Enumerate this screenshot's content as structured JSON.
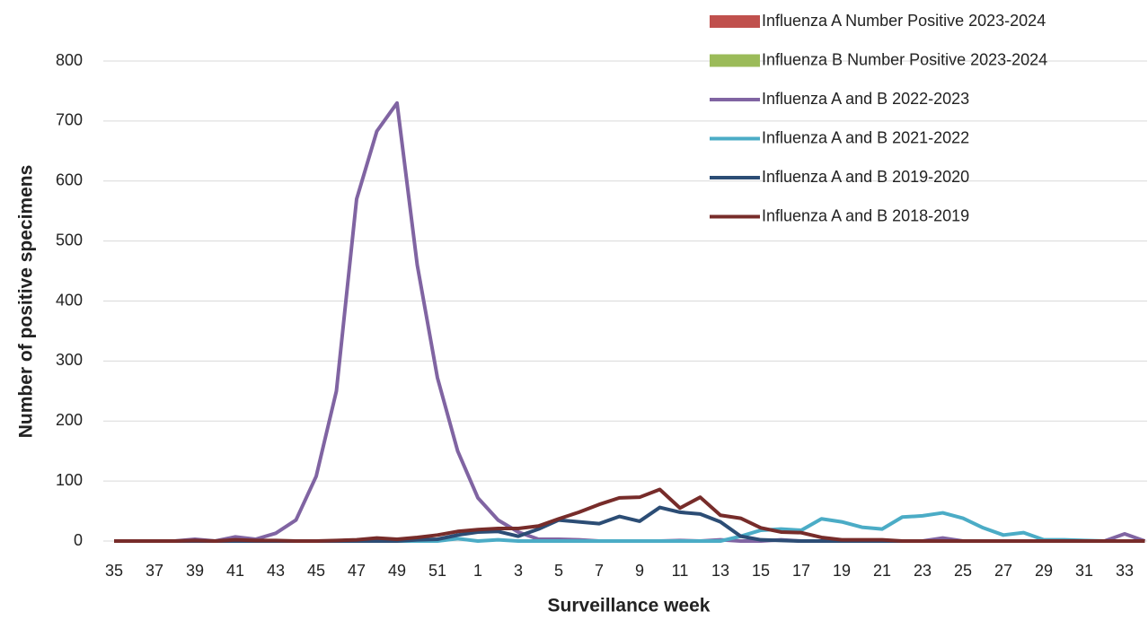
{
  "chart_data": {
    "type": "line",
    "x_label": "Surveillance week",
    "y_label": "Number of positive specimens",
    "categories": [
      35,
      null,
      37,
      null,
      39,
      null,
      41,
      null,
      43,
      null,
      45,
      null,
      47,
      null,
      49,
      null,
      51,
      null,
      1,
      null,
      3,
      null,
      5,
      null,
      7,
      null,
      9,
      null,
      11,
      null,
      13,
      null,
      15,
      null,
      17,
      null,
      19,
      null,
      21,
      null,
      23,
      null,
      25,
      null,
      27,
      null,
      29,
      null,
      31,
      null,
      33,
      null
    ],
    "ylim": [
      0,
      800
    ],
    "yticks": [
      0,
      100,
      200,
      300,
      400,
      500,
      600,
      700,
      800
    ],
    "grid": true,
    "legend": "top-right",
    "series": [
      {
        "name": "Influenza A Number Positive 2023-2024",
        "type": "bar",
        "color": "#c0504d",
        "values": [
          null,
          null,
          null,
          null,
          null,
          null,
          null,
          null,
          null,
          null,
          null,
          null,
          null,
          null,
          null,
          null,
          null,
          null,
          null,
          null,
          null,
          null,
          null,
          null,
          null,
          null,
          null,
          null,
          null,
          null,
          null,
          null,
          null,
          null,
          null,
          null,
          null,
          null,
          null,
          null,
          null,
          null,
          null,
          null,
          null,
          null,
          null,
          null,
          null,
          null,
          null,
          null
        ]
      },
      {
        "name": "Influenza B Number Positive 2023-2024",
        "type": "bar",
        "color": "#9bbb59",
        "values": [
          null,
          null,
          null,
          null,
          null,
          null,
          null,
          null,
          null,
          null,
          null,
          null,
          null,
          null,
          null,
          null,
          null,
          null,
          null,
          null,
          null,
          null,
          null,
          null,
          null,
          null,
          null,
          null,
          null,
          null,
          null,
          null,
          null,
          null,
          null,
          null,
          null,
          null,
          null,
          null,
          null,
          null,
          null,
          null,
          null,
          null,
          null,
          null,
          null,
          null,
          null,
          null
        ]
      },
      {
        "name": "Influenza A and B 2022-2023",
        "type": "line",
        "color": "#8064a2",
        "values": [
          0,
          0,
          0,
          0,
          3,
          0,
          7,
          3,
          13,
          35,
          108,
          250,
          570,
          683,
          730,
          460,
          272,
          150,
          72,
          35,
          15,
          3,
          3,
          2,
          0,
          0,
          0,
          0,
          1,
          0,
          2,
          0,
          0,
          2,
          0,
          0,
          0,
          0,
          0,
          0,
          0,
          5,
          0,
          0,
          0,
          0,
          0,
          0,
          0,
          0,
          12,
          0
        ]
      },
      {
        "name": "Influenza A and B 2021-2022",
        "type": "line",
        "color": "#4bacc6",
        "values": [
          0,
          0,
          0,
          0,
          0,
          0,
          0,
          0,
          0,
          0,
          0,
          0,
          0,
          0,
          0,
          0,
          0,
          4,
          0,
          2,
          0,
          0,
          0,
          0,
          0,
          0,
          0,
          0,
          0,
          0,
          0,
          8,
          18,
          20,
          18,
          37,
          32,
          23,
          20,
          40,
          42,
          47,
          38,
          22,
          10,
          14,
          2,
          2,
          1,
          0,
          0,
          0
        ]
      },
      {
        "name": "Influenza A and B 2019-2020",
        "type": "line",
        "color": "#2c4d75",
        "values": [
          0,
          0,
          0,
          0,
          0,
          0,
          0,
          0,
          0,
          0,
          0,
          0,
          0,
          0,
          0,
          2,
          3,
          10,
          15,
          16,
          8,
          20,
          35,
          32,
          29,
          41,
          33,
          56,
          48,
          45,
          32,
          8,
          2,
          1,
          0,
          0,
          0,
          0,
          0,
          0,
          0,
          0,
          0,
          0,
          0,
          0,
          0,
          0,
          0,
          0,
          0,
          0
        ]
      },
      {
        "name": "Influenza A and B 2018-2019",
        "type": "line",
        "color": "#772c2a",
        "values": [
          0,
          0,
          0,
          0,
          1,
          0,
          2,
          1,
          1,
          0,
          0,
          1,
          2,
          5,
          3,
          6,
          10,
          16,
          19,
          21,
          21,
          25,
          37,
          48,
          61,
          72,
          73,
          86,
          55,
          73,
          43,
          38,
          22,
          15,
          14,
          6,
          2,
          2,
          2,
          0,
          0,
          0,
          0,
          0,
          0,
          0,
          0,
          0,
          0,
          0,
          0,
          0
        ]
      }
    ]
  }
}
